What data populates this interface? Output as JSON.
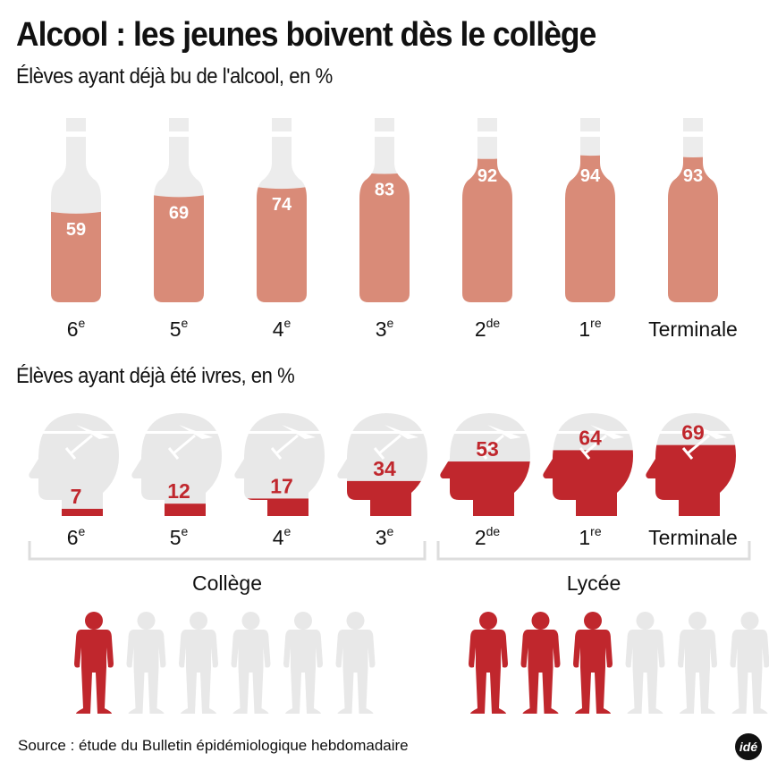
{
  "title": "Alcool : les jeunes boivent dès le collège",
  "section1": {
    "subtitle": "Élèves ayant déjà bu de l'alcool, en %"
  },
  "section2": {
    "subtitle": "Élèves ayant déjà été ivres, en %"
  },
  "grades": [
    {
      "base": "6",
      "sup": "e"
    },
    {
      "base": "5",
      "sup": "e"
    },
    {
      "base": "4",
      "sup": "e"
    },
    {
      "base": "3",
      "sup": "e"
    },
    {
      "base": "2",
      "sup": "de"
    },
    {
      "base": "1",
      "sup": "re"
    },
    {
      "base": "Terminale",
      "sup": ""
    }
  ],
  "groups": {
    "college": "Collège",
    "lycee": "Lycée"
  },
  "source": "Source : étude du Bulletin épidémiologique hebdomadaire",
  "logo": "idé",
  "colors": {
    "bottle_fill": "#d98b78",
    "bottle_empty": "#ececec",
    "drunk_red": "#c0272d",
    "empty_gray": "#e8e8e8",
    "bracket": "#dddddd"
  },
  "chart_data": [
    {
      "type": "bar",
      "title": "Élèves ayant déjà bu de l'alcool, en %",
      "categories": [
        "6e",
        "5e",
        "4e",
        "3e",
        "2de",
        "1re",
        "Terminale"
      ],
      "values": [
        59,
        69,
        74,
        83,
        92,
        94,
        93
      ],
      "ylim": [
        0,
        100
      ],
      "style": "bottle-fill pictogram"
    },
    {
      "type": "bar",
      "title": "Élèves ayant déjà été ivres, en %",
      "categories": [
        "6e",
        "5e",
        "4e",
        "3e",
        "2de",
        "1re",
        "Terminale"
      ],
      "values": [
        7,
        12,
        17,
        34,
        53,
        64,
        69
      ],
      "groups": [
        {
          "name": "Collège",
          "categories": [
            "6e",
            "5e",
            "4e",
            "3e"
          ]
        },
        {
          "name": "Lycée",
          "categories": [
            "2de",
            "1re",
            "Terminale"
          ]
        }
      ],
      "ylim": [
        0,
        100
      ],
      "style": "head-fill pictogram"
    },
    {
      "type": "table",
      "title": "Ratio pictogram (drunk students out of 6)",
      "series": [
        {
          "name": "Collège",
          "highlighted": 1,
          "total": 6
        },
        {
          "name": "Lycée",
          "highlighted": 3,
          "total": 6
        }
      ]
    }
  ]
}
